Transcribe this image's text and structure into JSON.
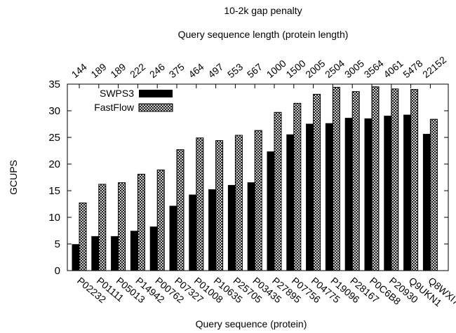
{
  "chart_data": {
    "type": "bar",
    "title": "10-2k gap penalty",
    "top_axis_label": "Query sequence length (protein length)",
    "xlabel": "Query sequence (protein)",
    "ylabel": "GCUPS",
    "ylim": [
      0,
      35
    ],
    "yticks": [
      0,
      5,
      10,
      15,
      20,
      25,
      30,
      35
    ],
    "grid": false,
    "legend_position": "top-left",
    "categories": [
      "P02232",
      "P01111",
      "P05013",
      "P14942",
      "P00762",
      "P07327",
      "P01008",
      "P10635",
      "P25705",
      "P03435",
      "P27895",
      "P07756",
      "P04775",
      "P19096",
      "P28167",
      "P0C6B8",
      "P20930",
      "Q9UKN1",
      "Q8WXI7"
    ],
    "top_labels": [
      "144",
      "189",
      "189",
      "222",
      "246",
      "375",
      "464",
      "497",
      "553",
      "567",
      "1000",
      "1500",
      "2005",
      "2504",
      "3005",
      "3564",
      "4061",
      "5478",
      "22152"
    ],
    "series": [
      {
        "name": "SWPS3",
        "color": "#000000",
        "pattern": "solid",
        "values": [
          4.9,
          6.4,
          6.4,
          7.4,
          8.2,
          12.1,
          14.2,
          15.2,
          16.0,
          16.5,
          22.3,
          25.5,
          27.5,
          27.6,
          28.6,
          28.5,
          29.0,
          29.2,
          25.6
        ]
      },
      {
        "name": "FastFlow",
        "color": "#000000",
        "pattern": "crosshatch",
        "values": [
          12.7,
          16.2,
          16.5,
          18.1,
          18.9,
          22.7,
          24.9,
          24.4,
          25.4,
          26.3,
          29.7,
          31.4,
          33.1,
          34.4,
          33.6,
          34.5,
          34.1,
          34.0,
          28.4
        ]
      }
    ]
  }
}
